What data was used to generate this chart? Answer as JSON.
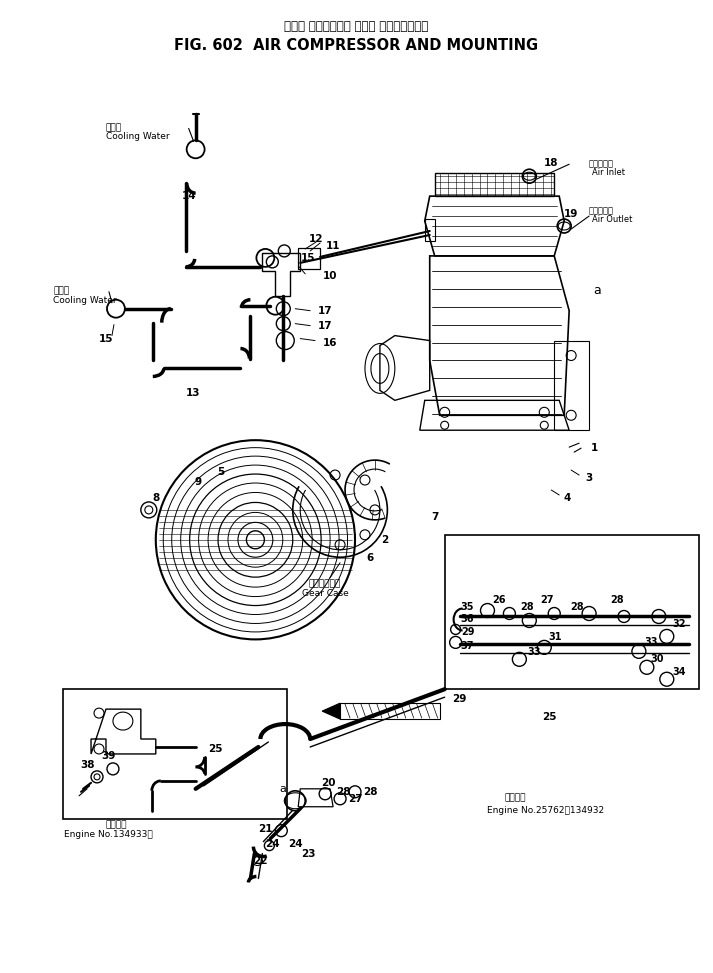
{
  "title_jp": "エアー コンプレッサ および マウンティング",
  "title_en": "FIG. 602  AIR COMPRESSOR AND MOUNTING",
  "bg_color": "#ffffff",
  "labels": {
    "cooling_water_jp1": "冷却水",
    "cooling_water_en1": "Cooling Water",
    "cooling_water_jp2": "冷却水",
    "cooling_water_en2": "Cooling Water",
    "air_inlet_jp": "エアー入口",
    "air_inlet_en": "Air Inlet",
    "air_outlet_jp": "エアー出口",
    "air_outlet_en": "Air Outlet",
    "gear_case_jp": "ギヤーケース",
    "gear_case_en": "Gear Case",
    "engine_no1_title": "適用号機",
    "engine_no1_range": "Engine No.134933～",
    "engine_no2_title": "適用号機",
    "engine_no2_range": "Engine No.25762～134932"
  }
}
